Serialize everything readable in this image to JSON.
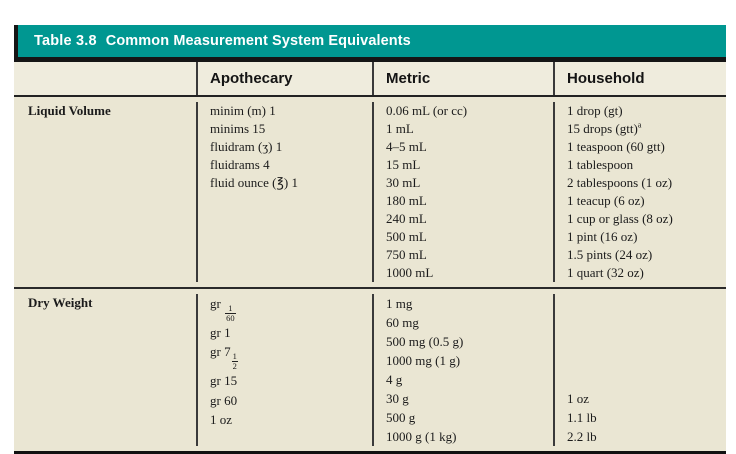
{
  "colors": {
    "accent_teal": "#009791",
    "bar_black": "#151515",
    "body_cream": "#eae6d3",
    "header_cream": "#efecdd"
  },
  "table": {
    "title_label": "Table 3.8",
    "title_text": "Common Measurement System Equivalents",
    "columns": [
      "",
      "Apothecary",
      "Metric",
      "Household"
    ],
    "sections": [
      {
        "label": "Liquid Volume",
        "apothecary": [
          {
            "t": "minim (m) 1"
          },
          {
            "t": "minims 15"
          },
          {
            "t": "fluidram (ʒ) 1"
          },
          {
            "t": "fluidrams 4"
          },
          {
            "t": "fluid ounce (℥) 1"
          }
        ],
        "metric": [
          {
            "t": "0.06 mL (or cc)"
          },
          {
            "t": "1 mL"
          },
          {
            "t": "4–5 mL"
          },
          {
            "t": "15 mL"
          },
          {
            "t": "30 mL"
          },
          {
            "t": "180 mL"
          },
          {
            "t": "240 mL"
          },
          {
            "t": "500 mL"
          },
          {
            "t": "750 mL"
          },
          {
            "t": "1000 mL"
          }
        ],
        "household": [
          {
            "t": "1 drop (gt)"
          },
          {
            "t": "15 drops (gtt)",
            "sup": "a"
          },
          {
            "t": "1 teaspoon (60 gtt)"
          },
          {
            "t": "1 tablespoon"
          },
          {
            "t": "2 tablespoons (1 oz)"
          },
          {
            "t": "1 teacup (6 oz)"
          },
          {
            "t": "1 cup or glass (8 oz)"
          },
          {
            "t": "1 pint (16 oz)"
          },
          {
            "t": "1.5 pints (24 oz)"
          },
          {
            "t": "1 quart (32 oz)"
          }
        ]
      },
      {
        "label": "Dry Weight",
        "apothecary": [
          {
            "t": "gr ",
            "num": "1",
            "den": "60"
          },
          {
            "t": "gr 1"
          },
          {
            "t": "gr 7",
            "num": "1",
            "den": "2"
          },
          {
            "t": "gr 15"
          },
          {
            "t": "gr 60"
          },
          {
            "t": "1 oz"
          }
        ],
        "metric": [
          {
            "t": "1 mg"
          },
          {
            "t": "60 mg"
          },
          {
            "t": "500 mg (0.5 g)"
          },
          {
            "t": "1000 mg (1 g)"
          },
          {
            "t": "4 g"
          },
          {
            "t": "30 g"
          },
          {
            "t": "500 g"
          },
          {
            "t": "1000 g (1 kg)"
          }
        ],
        "household": [
          {
            "t": ""
          },
          {
            "t": ""
          },
          {
            "t": ""
          },
          {
            "t": ""
          },
          {
            "t": ""
          },
          {
            "t": "1 oz"
          },
          {
            "t": "1.1 lb"
          },
          {
            "t": "2.2 lb"
          }
        ]
      }
    ]
  }
}
